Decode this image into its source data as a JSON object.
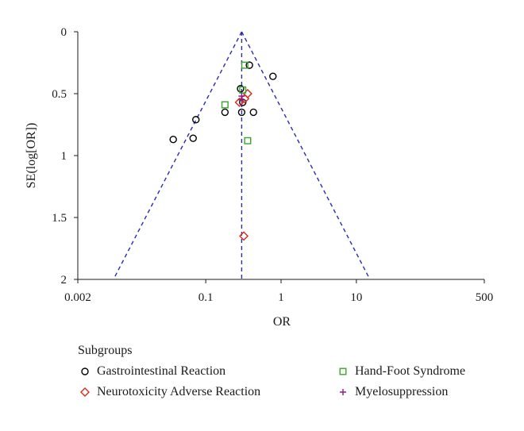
{
  "chart_data": {
    "type": "scatter",
    "xlabel": "OR",
    "ylabel": "SE(log[OR])",
    "x_scale": "log10",
    "xlim": [
      0.002,
      500
    ],
    "ylim": [
      0,
      2
    ],
    "y_inverted": true,
    "x_ticks": [
      {
        "value": 0.002,
        "label": "0.002"
      },
      {
        "value": 0.1,
        "label": "0.1"
      },
      {
        "value": 1,
        "label": "1"
      },
      {
        "value": 10,
        "label": "10"
      },
      {
        "value": 500,
        "label": "500"
      }
    ],
    "y_ticks": [
      {
        "value": 0,
        "label": "0"
      },
      {
        "value": 0.5,
        "label": "0.5"
      },
      {
        "value": 1,
        "label": "1"
      },
      {
        "value": 1.5,
        "label": "1.5"
      },
      {
        "value": 2,
        "label": "2"
      }
    ],
    "pooled_or": 0.3,
    "funnel_ci": "95%",
    "legend_title": "Subgroups",
    "legend_placement": "bottom",
    "series": [
      {
        "name": "Gastrointestinal Reaction",
        "marker": "circle",
        "color": "#000000",
        "points": [
          [
            0.38,
            0.27
          ],
          [
            0.78,
            0.36
          ],
          [
            0.29,
            0.46
          ],
          [
            0.31,
            0.57
          ],
          [
            0.18,
            0.65
          ],
          [
            0.3,
            0.65
          ],
          [
            0.43,
            0.65
          ],
          [
            0.074,
            0.71
          ],
          [
            0.068,
            0.86
          ],
          [
            0.037,
            0.87
          ]
        ]
      },
      {
        "name": "Neurotoxicity Adverse Reaction",
        "marker": "diamond",
        "color": "#d62b1e",
        "points": [
          [
            0.36,
            0.5
          ],
          [
            0.33,
            0.54
          ],
          [
            0.28,
            0.57
          ],
          [
            0.32,
            1.65
          ]
        ]
      },
      {
        "name": "Hand-Foot Syndrome",
        "marker": "square",
        "color": "#3aa52e",
        "points": [
          [
            0.33,
            0.27
          ],
          [
            0.31,
            0.47
          ],
          [
            0.18,
            0.59
          ],
          [
            0.36,
            0.88
          ]
        ]
      },
      {
        "name": "Myelosuppression",
        "marker": "plus",
        "color": "#8b1a8e",
        "points": [
          [
            0.3,
            0.52
          ],
          [
            0.3,
            0.55
          ]
        ]
      }
    ]
  }
}
